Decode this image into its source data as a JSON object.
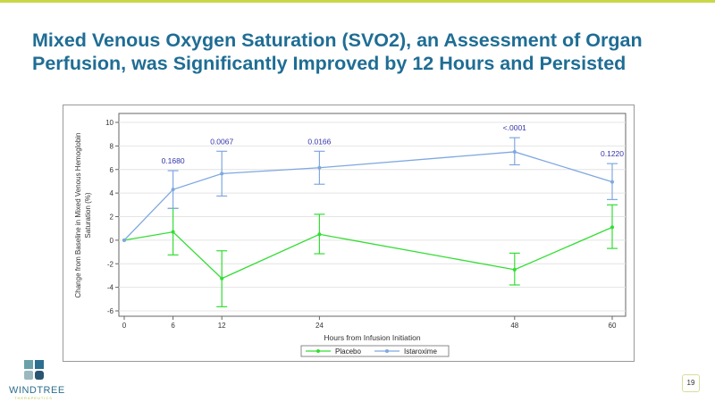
{
  "slide": {
    "title": "Mixed Venous Oxygen Saturation (SVO2), an Assessment of Organ Perfusion, was Significantly Improved by 12 Hours and Persisted",
    "logo": {
      "name": "WINDTREE",
      "sub": "THERAPEUTICS"
    },
    "page_number": "19",
    "accent_color": "#c8d84a",
    "title_color": "#1f6d94"
  },
  "chart_data": {
    "type": "line",
    "xlabel": "Hours from Infusion Initiation",
    "ylabel": "Change from Baseline in  Mixed Venous Hemoglobin Saturation (%)",
    "x": [
      0,
      6,
      12,
      24,
      48,
      60
    ],
    "xticks": [
      "0",
      "6",
      "12",
      "24",
      "48",
      "60"
    ],
    "xlim": [
      0,
      60
    ],
    "ylim": [
      -6,
      10
    ],
    "yticks": [
      "-6",
      "-4",
      "-2",
      "0",
      "2",
      "4",
      "6",
      "8",
      "10"
    ],
    "grid": true,
    "legend_position": "bottom",
    "series": [
      {
        "name": "Placebo",
        "color": "#33dd33",
        "values": [
          0,
          0.7,
          -3.25,
          0.5,
          -2.5,
          1.1
        ],
        "lower": [
          null,
          -1.25,
          -5.65,
          -1.15,
          -3.8,
          -0.7
        ],
        "upper": [
          null,
          2.7,
          -0.9,
          2.2,
          -1.1,
          3.0
        ]
      },
      {
        "name": "Istaroxime",
        "color": "#7fa8e0",
        "values": [
          0,
          4.3,
          5.65,
          6.15,
          7.5,
          4.95
        ],
        "lower": [
          null,
          2.7,
          3.75,
          4.75,
          6.4,
          3.45
        ],
        "upper": [
          null,
          5.9,
          7.55,
          7.55,
          8.7,
          6.5
        ]
      }
    ],
    "annotations": [
      {
        "x": 6,
        "text": "0.1680"
      },
      {
        "x": 12,
        "text": "0.0067"
      },
      {
        "x": 24,
        "text": "0.0166"
      },
      {
        "x": 48,
        "text": "<.0001"
      },
      {
        "x": 60,
        "text": "0.1220"
      }
    ],
    "annotation_color": "#3333aa"
  }
}
